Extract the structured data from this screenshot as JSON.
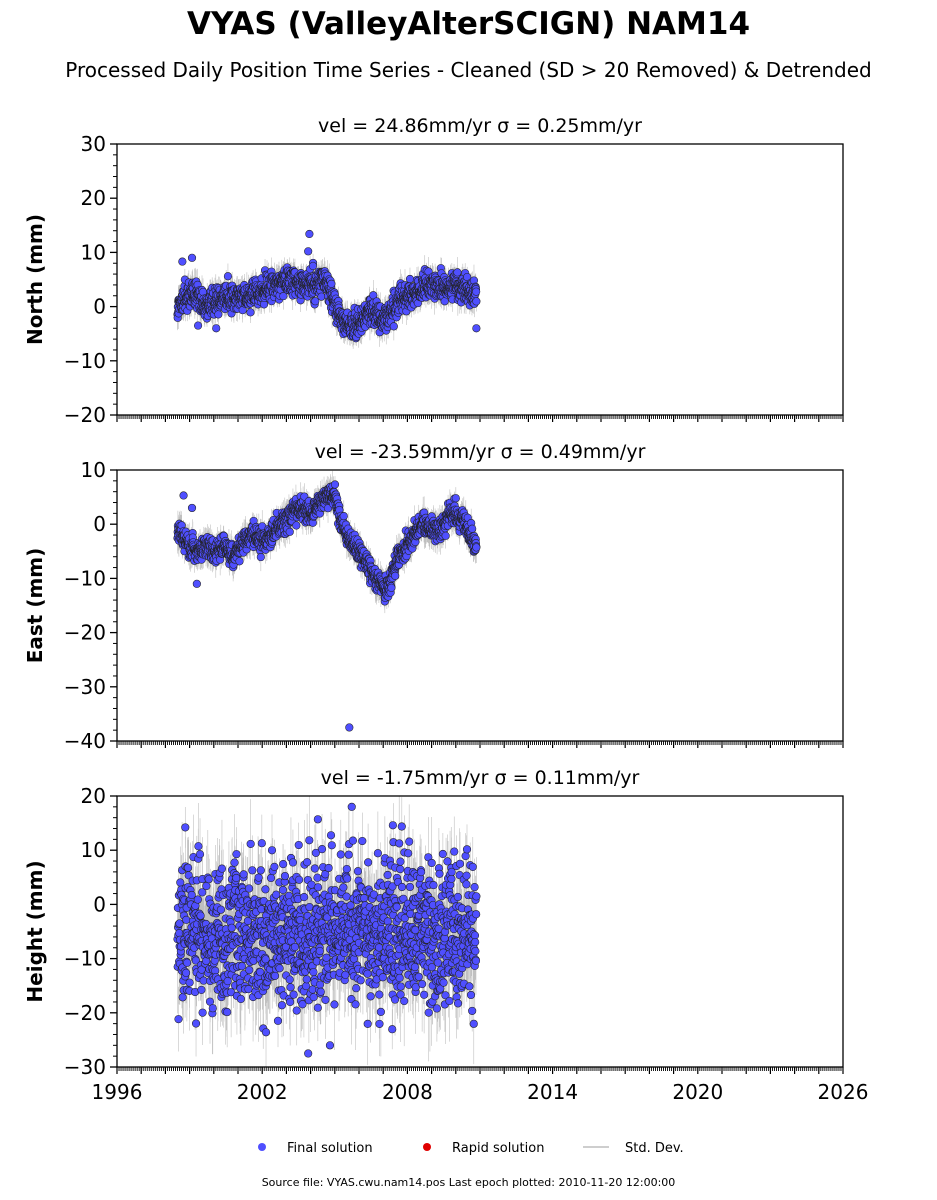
{
  "header": {
    "title": "VYAS (ValleyAlterSCIGN) NAM14",
    "subtitle": "Processed Daily Position Time Series - Cleaned (SD > 20 Removed) & Detrended"
  },
  "chart_data": {
    "type": "scatter",
    "x_range": [
      1996,
      2026
    ],
    "x_ticks": [
      1996,
      2002,
      2008,
      2014,
      2020,
      2026
    ],
    "x_tick_labels": [
      "1996",
      "2002",
      "2008",
      "2014",
      "2020",
      "2026"
    ],
    "data_span": [
      1998.5,
      2010.85
    ],
    "colors": {
      "final": "#4f4fff",
      "rapid": "#e00000",
      "std": "#bdbdbd",
      "marker_edge": "#222222"
    },
    "panels": [
      {
        "name": "north",
        "ylabel": "North (mm)",
        "velocity_label": "vel = 24.86mm/yr   σ = 0.25mm/yr",
        "ylim": [
          -20,
          30
        ],
        "y_ticks": [
          30,
          20,
          10,
          0,
          -10,
          -20
        ],
        "y_tick_labels": [
          "30",
          "20",
          "10",
          "0",
          "−10",
          "−20"
        ],
        "trend": [
          [
            1998.5,
            0
          ],
          [
            1998.9,
            1.5
          ],
          [
            1999.2,
            3
          ],
          [
            1999.6,
            0.5
          ],
          [
            2000.0,
            1
          ],
          [
            2000.5,
            1.5
          ],
          [
            2001.0,
            2
          ],
          [
            2001.5,
            1.5
          ],
          [
            2002.0,
            3
          ],
          [
            2002.5,
            4
          ],
          [
            2003.0,
            5
          ],
          [
            2003.5,
            4
          ],
          [
            2004.0,
            4
          ],
          [
            2004.5,
            5
          ],
          [
            2004.8,
            3
          ],
          [
            2005.2,
            -2
          ],
          [
            2005.6,
            -4
          ],
          [
            2006.0,
            -3
          ],
          [
            2006.5,
            -1
          ],
          [
            2007.0,
            -2
          ],
          [
            2007.3,
            -1
          ],
          [
            2007.6,
            1
          ],
          [
            2008.0,
            2
          ],
          [
            2008.5,
            3
          ],
          [
            2009.0,
            4
          ],
          [
            2009.5,
            3.5
          ],
          [
            2010.0,
            4
          ],
          [
            2010.4,
            3
          ],
          [
            2010.85,
            2
          ]
        ],
        "noise_mm": 1.2,
        "std_mm": 2.0,
        "outliers": [
          [
            1998.7,
            8.3
          ],
          [
            1999.1,
            9
          ],
          [
            2003.95,
            13.4
          ],
          [
            2003.9,
            10.2
          ],
          [
            2004.1,
            7.5
          ],
          [
            2010.85,
            -4
          ],
          [
            1999.35,
            -3.5
          ],
          [
            2000.1,
            -4
          ]
        ]
      },
      {
        "name": "east",
        "ylabel": "East (mm)",
        "velocity_label": "vel = -23.59mm/yr   σ = 0.49mm/yr",
        "ylim": [
          -40,
          10
        ],
        "y_ticks": [
          10,
          0,
          -10,
          -20,
          -30,
          -40
        ],
        "y_tick_labels": [
          "10",
          "0",
          "−10",
          "−20",
          "−30",
          "−40"
        ],
        "trend": [
          [
            1998.5,
            -1
          ],
          [
            1998.8,
            -3
          ],
          [
            1999.2,
            -5
          ],
          [
            1999.6,
            -4
          ],
          [
            2000.0,
            -5
          ],
          [
            2000.4,
            -4
          ],
          [
            2000.8,
            -6
          ],
          [
            2001.2,
            -3
          ],
          [
            2001.6,
            -2
          ],
          [
            2002.0,
            -3
          ],
          [
            2002.4,
            -2
          ],
          [
            2002.8,
            0
          ],
          [
            2003.2,
            2
          ],
          [
            2003.6,
            3
          ],
          [
            2004.0,
            2
          ],
          [
            2004.4,
            4
          ],
          [
            2004.8,
            6
          ],
          [
            2005.0,
            5
          ],
          [
            2005.3,
            0
          ],
          [
            2005.6,
            -3
          ],
          [
            2006.0,
            -5
          ],
          [
            2006.4,
            -8
          ],
          [
            2006.8,
            -11
          ],
          [
            2007.2,
            -12
          ],
          [
            2007.6,
            -6
          ],
          [
            2008.0,
            -4
          ],
          [
            2008.3,
            -2
          ],
          [
            2008.6,
            0
          ],
          [
            2009.0,
            -1
          ],
          [
            2009.4,
            -1
          ],
          [
            2009.8,
            2
          ],
          [
            2010.2,
            1
          ],
          [
            2010.6,
            -2
          ],
          [
            2010.85,
            -4
          ]
        ],
        "noise_mm": 1.0,
        "std_mm": 2.0,
        "outliers": [
          [
            2005.6,
            -37.5
          ],
          [
            1999.3,
            -11
          ],
          [
            1999.1,
            3
          ],
          [
            1998.75,
            5.3
          ]
        ]
      },
      {
        "name": "height",
        "ylabel": "Height (mm)",
        "velocity_label": "vel = -1.75mm/yr   σ = 0.11mm/yr",
        "ylim": [
          -30,
          20
        ],
        "y_ticks": [
          20,
          10,
          0,
          -10,
          -20,
          -30
        ],
        "y_tick_labels": [
          "20",
          "10",
          "0",
          "−10",
          "−20",
          "−30"
        ],
        "trend": [
          [
            1998.5,
            -5
          ],
          [
            2004.0,
            -5
          ],
          [
            2010.85,
            -5
          ]
        ],
        "noise_mm": 6.5,
        "std_mm": 6.0,
        "outliers": [
          [
            2003.9,
            -27.5
          ],
          [
            2005.7,
            18
          ],
          [
            2004.3,
            15.7
          ],
          [
            2007.4,
            14.6
          ],
          [
            2004.8,
            -26
          ]
        ]
      }
    ],
    "legend": {
      "position": "bottom-center",
      "items": [
        {
          "label": "Final solution",
          "kind": "final"
        },
        {
          "label": "Rapid solution",
          "kind": "rapid"
        },
        {
          "label": "Std. Dev.",
          "kind": "std"
        }
      ]
    }
  },
  "footer": {
    "source_text": "Source file: VYAS.cwu.nam14.pos  Last epoch plotted: 2010-11-20 12:00:00"
  }
}
